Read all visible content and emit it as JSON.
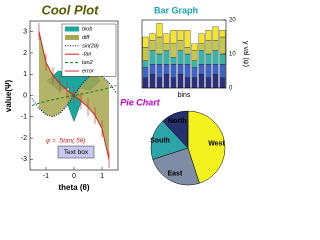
{
  "chart_data": [
    {
      "type": "line",
      "title": "Cool Plot",
      "xlabel": "theta (θ)",
      "ylabel": "value(Ψ)",
      "x": [
        -1.5,
        -1.25,
        -1,
        -0.75,
        -0.5,
        -0.25,
        0,
        0.25,
        0.5,
        0.75,
        1,
        1.25,
        1.5
      ],
      "xlim": [
        -1.57,
        1.57
      ],
      "ylim": [
        -3.5,
        3.5
      ],
      "xticks": [
        -1,
        0,
        1
      ],
      "yticks": [
        3,
        2,
        1,
        0,
        -1,
        -2,
        -3
      ],
      "series": [
        {
          "name": "blob",
          "color": "#1aa89c",
          "dash": "solid",
          "x": [
            0.96,
            0.554,
            0.17,
            0.23,
            0,
            -0.23,
            -0.17,
            -0.554,
            -0.96,
            -0.554,
            -0.17,
            -0.23,
            0,
            0.23,
            0.17,
            0.554
          ],
          "values": [
            0.7,
            1.16,
            1.04,
            1.81,
            2.62,
            1.81,
            1.04,
            1.16,
            0.7,
            0.24,
            0.36,
            -0.41,
            -1.22,
            -0.41,
            0.36,
            0.24
          ]
        },
        {
          "name": "diff",
          "color": "#a6a650",
          "dash": "solid",
          "values": [
            null,
            3.61,
            2.47,
            1.93,
            1.39,
            0.74,
            0,
            -0.74,
            -1.39,
            -1.93,
            -2.47,
            -3.61,
            null
          ]
        },
        {
          "name": "sin(2θ)",
          "color": "#000080",
          "dash": "dotted",
          "values": [
            -0.14,
            -0.6,
            -0.91,
            -1.0,
            -0.84,
            -0.48,
            0,
            0.48,
            0.84,
            1.0,
            0.91,
            0.6,
            0.14
          ]
        },
        {
          "name": "-tan",
          "color": "#d02020",
          "dash": "solid",
          "values": [
            null,
            3.01,
            1.56,
            0.93,
            0.55,
            0.26,
            0,
            -0.26,
            -0.55,
            -0.93,
            -1.56,
            -3.01,
            null
          ]
        },
        {
          "name": "tan2",
          "color": "#108010",
          "dash": "dashed",
          "values": [
            -0.47,
            -0.36,
            -0.27,
            -0.2,
            -0.13,
            -0.06,
            0,
            0.06,
            0.13,
            0.2,
            0.27,
            0.36,
            0.47
          ]
        },
        {
          "name": "error",
          "color": "#e03030",
          "dash": "solid",
          "values": [
            null,
            3.01,
            1.56,
            0.93,
            0.55,
            0.26,
            0,
            -0.26,
            -0.55,
            -0.93,
            -1.56,
            -3.01,
            null
          ],
          "errors": [
            null,
            0.4,
            0.4,
            0.4,
            0.4,
            0.4,
            0.4,
            0.4,
            0.4,
            0.4,
            0.4,
            0.4,
            null
          ]
        }
      ],
      "annotations": [
        "φ = .5tan(.5θ)",
        "Text box"
      ]
    },
    {
      "type": "bar",
      "title": "Bar Graph",
      "xlabel": "bins",
      "ylabel": "y val (ψ)",
      "categories": [
        null,
        null,
        null,
        null,
        null,
        null,
        null,
        null,
        null,
        null,
        null,
        null
      ],
      "ylim": [
        0,
        20
      ],
      "yticks": [
        0,
        10,
        20
      ],
      "series": [
        {
          "color": "#2b2f80",
          "values": [
            3,
            4,
            3,
            4,
            3,
            4,
            3,
            3,
            4,
            3,
            4,
            3
          ]
        },
        {
          "color": "#3d62c8",
          "values": [
            3,
            3,
            4,
            3,
            4,
            3,
            4,
            3,
            3,
            4,
            3,
            4
          ]
        },
        {
          "color": "#36b6a7",
          "values": [
            2,
            4,
            3,
            4,
            2,
            4,
            3,
            2,
            4,
            3,
            4,
            3
          ]
        },
        {
          "color": "#c4c646",
          "values": [
            4,
            3,
            5,
            2,
            4,
            3,
            2,
            3,
            2,
            4,
            3,
            5
          ]
        },
        {
          "color": "#f6e42c",
          "values": [
            3,
            2,
            4,
            3,
            4,
            3,
            5,
            2,
            3,
            3,
            4,
            2
          ]
        }
      ]
    },
    {
      "type": "pie",
      "title": "Pie Chart",
      "categories": [
        "West",
        "East",
        "South",
        "North"
      ],
      "values": [
        45,
        25,
        18,
        12
      ],
      "colors": [
        "#f4f21e",
        "#7f8ca6",
        "#2da4a8",
        "#26306e"
      ]
    }
  ]
}
